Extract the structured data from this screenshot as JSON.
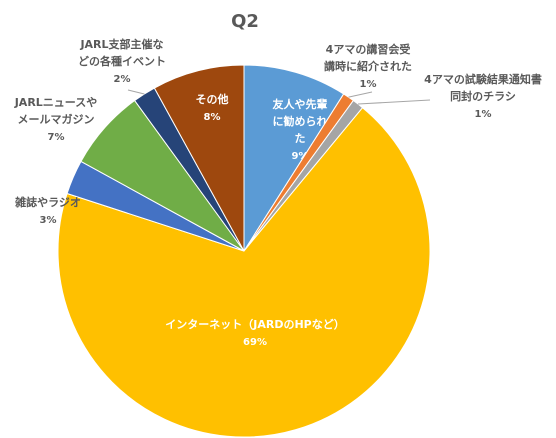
{
  "chart_data": {
    "type": "pie",
    "title": "Q2",
    "categories": [
      "友人や先輩に勧められた",
      "4アマの講習会受講時に紹介された",
      "4アマの試験結果通知書同封のチラシ",
      "インターネット（JARDのHPなど）",
      "雑誌やラジオ",
      "JARLニュースやメールマガジン",
      "JARL支部主催などの各種イベント",
      "その他"
    ],
    "values": [
      9,
      1,
      1,
      69,
      3,
      7,
      2,
      8
    ],
    "value_labels": [
      "9%",
      "1%",
      "1%",
      "69%",
      "3%",
      "7%",
      "2%",
      "8%"
    ],
    "colors": [
      "#5b9bd5",
      "#ed7d31",
      "#a5a5a5",
      "#ffc000",
      "#4472c4",
      "#70ad47",
      "#264478",
      "#9e480e"
    ]
  }
}
